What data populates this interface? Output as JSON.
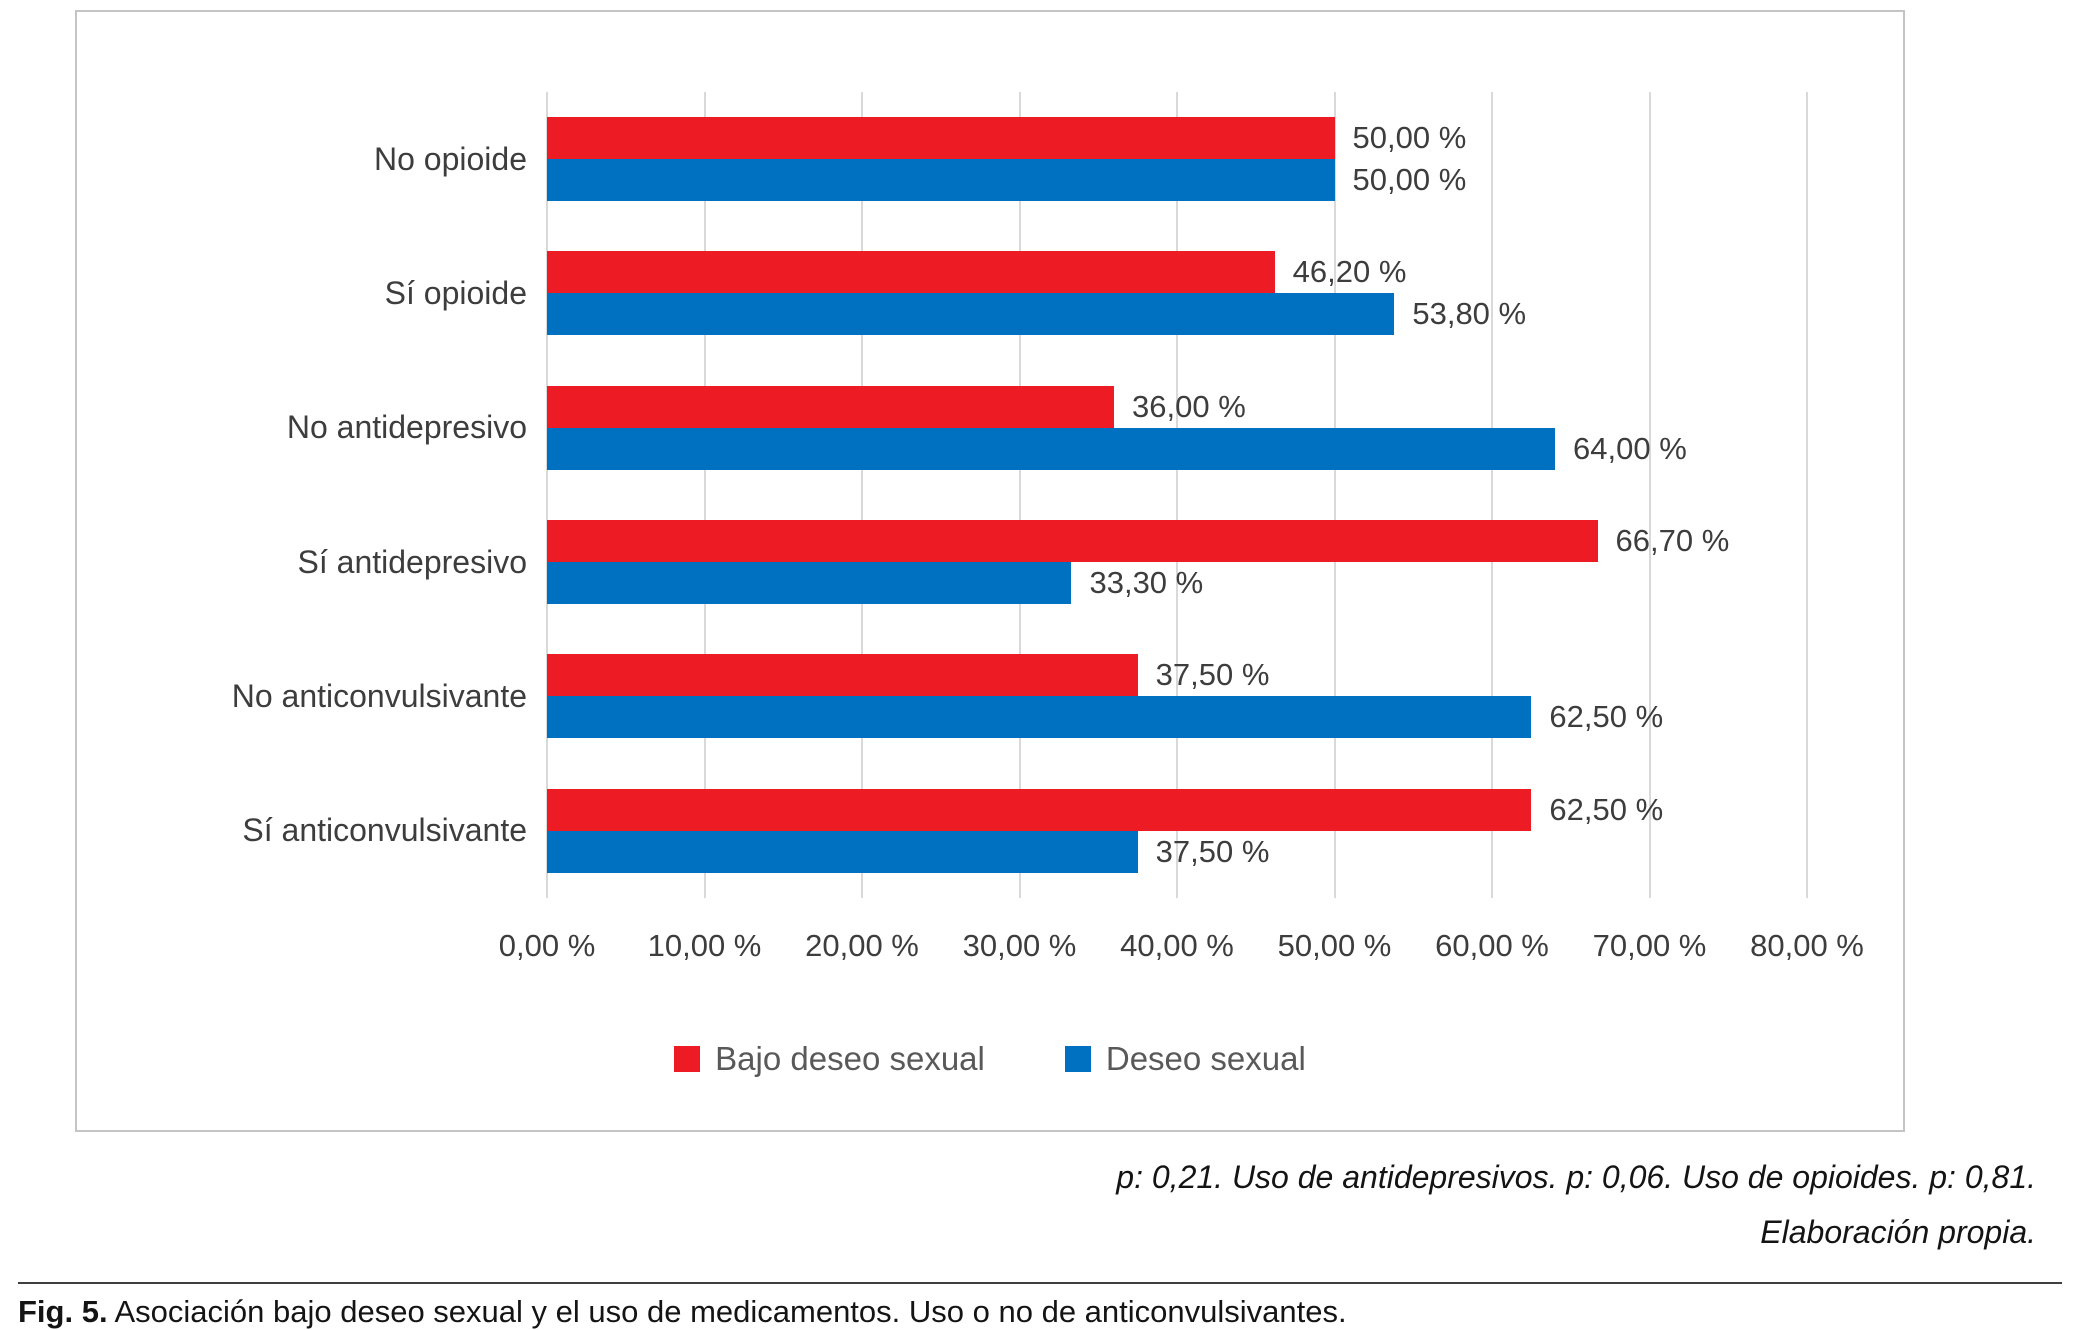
{
  "chart_data": {
    "type": "bar",
    "orientation": "horizontal",
    "categories": [
      "No opioide",
      "Sí opioide",
      "No antidepresivo",
      "Sí antidepresivo",
      "No anticonvulsivante",
      "Sí anticonvulsivante"
    ],
    "series": [
      {
        "name": "Bajo deseo sexual",
        "color": "#ed1c24",
        "values": [
          50.0,
          46.2,
          36.0,
          66.7,
          37.5,
          62.5
        ],
        "labels": [
          "50,00 %",
          "46,20 %",
          "36,00 %",
          "66,70 %",
          "37,50 %",
          "62,50 %"
        ]
      },
      {
        "name": "Deseo sexual",
        "color": "#0070c0",
        "values": [
          50.0,
          53.8,
          64.0,
          33.3,
          62.5,
          37.5
        ],
        "labels": [
          "50,00 %",
          "53,80 %",
          "64,00 %",
          "33,30 %",
          "62,50 %",
          "37,50 %"
        ]
      }
    ],
    "xlim": [
      0,
      80
    ],
    "x_ticks": [
      0,
      10,
      20,
      30,
      40,
      50,
      60,
      70,
      80
    ],
    "x_tick_labels": [
      "0,00 %",
      "10,00 %",
      "20,00 %",
      "30,00 %",
      "40,00 %",
      "50,00 %",
      "60,00 %",
      "70,00 %",
      "80,00 %"
    ],
    "grid": true,
    "legend_position": "bottom",
    "title": "",
    "xlabel": "",
    "ylabel": ""
  },
  "notes": {
    "line1": "p: 0,21. Uso de antidepresivos. p: 0,06. Uso de opioides. p: 0,81.",
    "line2": "Elaboración propia."
  },
  "caption": {
    "label": "Fig. 5.",
    "text": " Asociación bajo deseo sexual y el uso de medicamentos. Uso o no de anticonvulsivantes."
  }
}
